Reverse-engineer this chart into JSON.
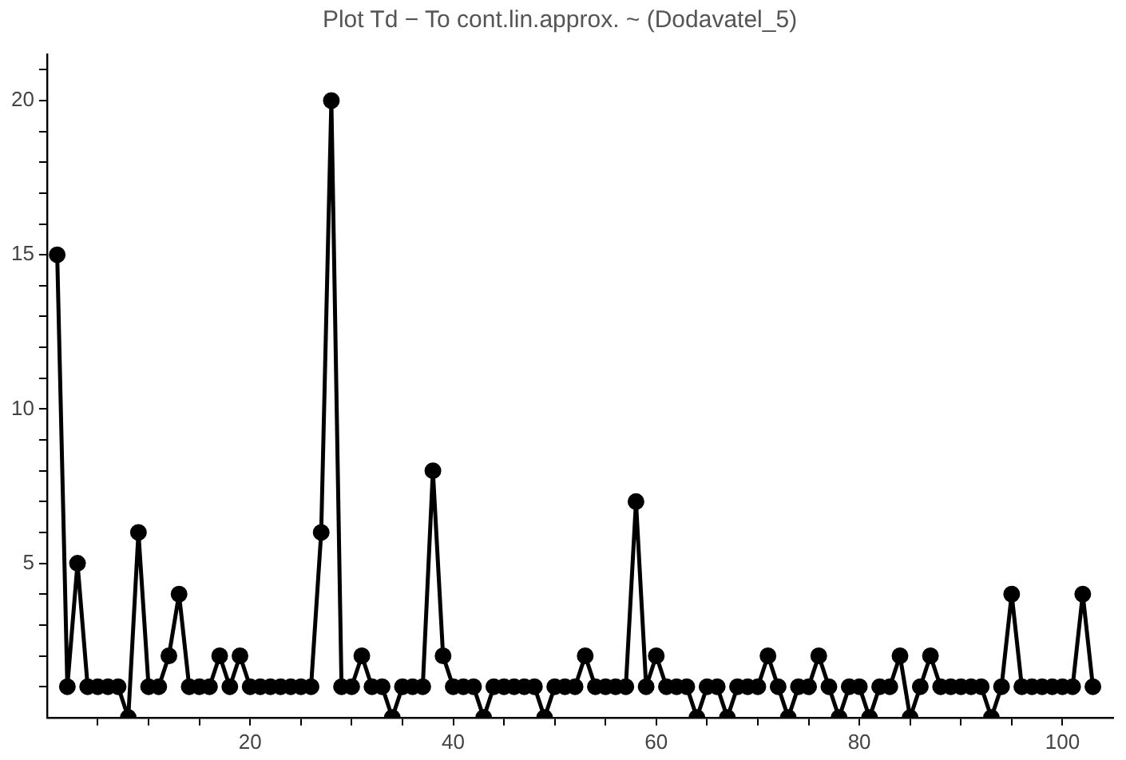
{
  "chart_data": {
    "type": "line",
    "title": "Plot Td − To cont.lin.approx. ~ (Dodavatel_5)",
    "x": [
      1,
      2,
      3,
      4,
      5,
      6,
      7,
      8,
      9,
      10,
      11,
      12,
      13,
      14,
      15,
      16,
      17,
      18,
      19,
      20,
      21,
      22,
      23,
      24,
      25,
      26,
      27,
      28,
      29,
      30,
      31,
      32,
      33,
      34,
      35,
      36,
      37,
      38,
      39,
      40,
      41,
      42,
      43,
      44,
      45,
      46,
      47,
      48,
      49,
      50,
      51,
      52,
      53,
      54,
      55,
      56,
      57,
      58,
      59,
      60,
      61,
      62,
      63,
      64,
      65,
      66,
      67,
      68,
      69,
      70,
      71,
      72,
      73,
      74,
      75,
      76,
      77,
      78,
      79,
      80,
      81,
      82,
      83,
      84,
      85,
      86,
      87,
      88,
      89,
      90,
      91,
      92,
      93,
      94,
      95,
      96,
      97,
      98,
      99,
      100,
      101,
      102,
      103
    ],
    "series": [
      {
        "color": "#000000",
        "values": [
          15,
          1,
          5,
          1,
          1,
          1,
          1,
          0,
          6,
          1,
          1,
          2,
          4,
          1,
          1,
          1,
          2,
          1,
          2,
          1,
          1,
          1,
          1,
          1,
          1,
          1,
          6,
          20,
          1,
          1,
          2,
          1,
          1,
          0,
          1,
          1,
          1,
          8,
          2,
          1,
          1,
          1,
          0,
          1,
          1,
          1,
          1,
          1,
          0,
          1,
          1,
          1,
          2,
          1,
          1,
          1,
          1,
          7,
          1,
          2,
          1,
          1,
          1,
          0,
          1,
          1,
          0,
          1,
          1,
          1,
          2,
          1,
          0,
          1,
          1,
          2,
          1,
          0,
          1,
          1,
          0,
          1,
          1,
          2,
          0,
          1,
          2,
          1,
          1,
          1,
          1,
          1,
          0,
          1,
          4,
          1,
          1,
          1,
          1,
          1,
          1,
          4,
          1
        ]
      }
    ],
    "xlim": [
      0,
      105
    ],
    "xticks": [
      {
        "value": 5,
        "label": null
      },
      {
        "value": 10,
        "label": null
      },
      {
        "value": 15,
        "label": null
      },
      20,
      {
        "value": 25,
        "label": null
      },
      {
        "value": 30,
        "label": null
      },
      {
        "value": 35,
        "label": null
      },
      40,
      {
        "value": 45,
        "label": null
      },
      {
        "value": 50,
        "label": null
      },
      {
        "value": 55,
        "label": null
      },
      60,
      {
        "value": 65,
        "label": null
      },
      {
        "value": 70,
        "label": null
      },
      {
        "value": 75,
        "label": null
      },
      80,
      {
        "value": 85,
        "label": null
      },
      {
        "value": 90,
        "label": null
      },
      {
        "value": 95,
        "label": null
      },
      100
    ],
    "ylim": [
      0,
      21.5
    ],
    "yticks": [
      {
        "value": 1,
        "label": null
      },
      {
        "value": 2,
        "label": null
      },
      {
        "value": 3,
        "label": null
      },
      {
        "value": 4,
        "label": null
      },
      5,
      {
        "value": 6,
        "label": null
      },
      {
        "value": 7,
        "label": null
      },
      {
        "value": 8,
        "label": null
      },
      {
        "value": 9,
        "label": null
      },
      10,
      {
        "value": 11,
        "label": null
      },
      {
        "value": 12,
        "label": null
      },
      {
        "value": 13,
        "label": null
      },
      {
        "value": 14,
        "label": null
      },
      15,
      {
        "value": 16,
        "label": null
      },
      {
        "value": 17,
        "label": null
      },
      {
        "value": 18,
        "label": null
      },
      {
        "value": 19,
        "label": null
      },
      20,
      {
        "value": 21,
        "label": null
      }
    ],
    "grid": false,
    "legend": false,
    "marker": "circle",
    "line_style": "solid"
  }
}
